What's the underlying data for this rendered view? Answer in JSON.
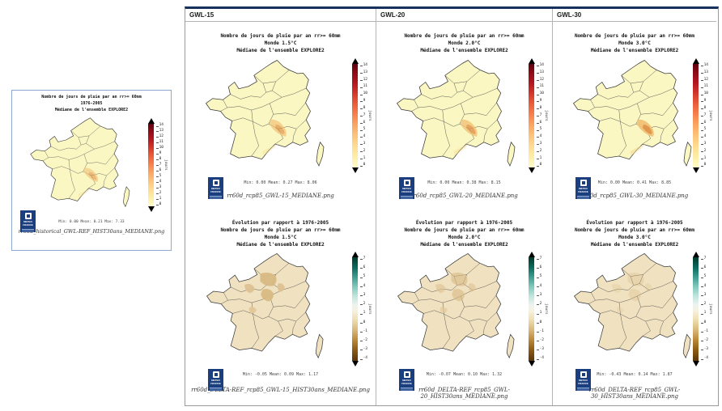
{
  "colors": {
    "table_top_border": "#16325c",
    "logo_navy": "#1b3f7e",
    "absolute_map_fill": "#fbf7c3",
    "delta_map_fill": "#f0e2c0"
  },
  "logo": {
    "line1": "METEO",
    "line2": "FRANCE"
  },
  "colorbars": {
    "absolute": {
      "unit": "jours",
      "ticks": [
        14,
        13,
        12,
        11,
        10,
        9,
        8,
        7,
        6,
        5,
        4,
        3,
        2,
        1,
        0
      ]
    },
    "delta": {
      "unit": "jours",
      "ticks": [
        7,
        6,
        5,
        4,
        3,
        2,
        1,
        0,
        -1,
        -2,
        -3,
        -4
      ]
    }
  },
  "left_panel": {
    "title_lines": [
      "Nombre de jours de pluie par an rr>= 60mm",
      "1976-2005",
      "Médiane de l'ensemble EXPLORE2"
    ],
    "stats": "Min: 0.00 Mean: 0.21 Max: 7.33",
    "filename": "rr60d_historical_GWL-REF_HIST30ans_MEDIANE.png"
  },
  "grid": {
    "columns": [
      {
        "header": "GWL-15",
        "top": {
          "title_lines": [
            "Nombre de jours de pluie par an rr>= 60mm",
            "Monde 1.5°C",
            "Médiane de l'ensemble EXPLORE2"
          ],
          "stats": "Min: 0.00 Mean: 0.27 Max: 8.06",
          "filename": "rr60d_rcp85_GWL-15_MEDIANE.png"
        },
        "bottom": {
          "title_lines": [
            "Évolution par rapport à 1976-2005",
            "Nombre de jours de pluie par an rr>= 60mm",
            "Monde 1.5°C",
            "Médiane de l'ensemble EXPLORE2"
          ],
          "stats": "Min: -0.05 Mean: 0.09 Max: 1.17",
          "filename": "rr60d_DELTA-REF_rcp85_GWL-15_HIST30ans_MEDIANE.png"
        }
      },
      {
        "header": "GWL-20",
        "top": {
          "title_lines": [
            "Nombre de jours de pluie par an rr>= 60mm",
            "Monde 2.0°C",
            "Médiane de l'ensemble EXPLORE2"
          ],
          "stats": "Min: 0.00 Mean: 0.38 Max: 8.15",
          "filename": "rr60d_rcp85_GWL-20_MEDIANE.png"
        },
        "bottom": {
          "title_lines": [
            "Évolution par rapport à 1976-2005",
            "Nombre de jours de pluie par an rr>= 60mm",
            "Monde 2.0°C",
            "Médiane de l'ensemble EXPLORE2"
          ],
          "stats": "Min: -0.07 Mean: 0.10 Max: 1.32",
          "filename": "rr60d_DELTA-REF_rcp85_GWL-20_HIST30ans_MEDIANE.png"
        }
      },
      {
        "header": "GWL-30",
        "top": {
          "title_lines": [
            "Nombre de jours de pluie par an rr>= 60mm",
            "Monde 3.0°C",
            "Médiane de l'ensemble EXPLORE2"
          ],
          "stats": "Min: 0.00 Mean: 0.41 Max: 8.85",
          "filename": "rr60d_rcp85_GWL-30_MEDIANE.png"
        },
        "bottom": {
          "title_lines": [
            "Évolution par rapport à 1976-2005",
            "Nombre de jours de pluie par an rr>= 60mm",
            "Monde 3.0°C",
            "Médiane de l'ensemble EXPLORE2"
          ],
          "stats": "Min: -0.43 Mean: 0.14 Max: 1.87",
          "filename": "rr60d_DELTA-REF_rcp85_GWL-30_HIST30ans_MEDIANE.png"
        }
      }
    ]
  }
}
